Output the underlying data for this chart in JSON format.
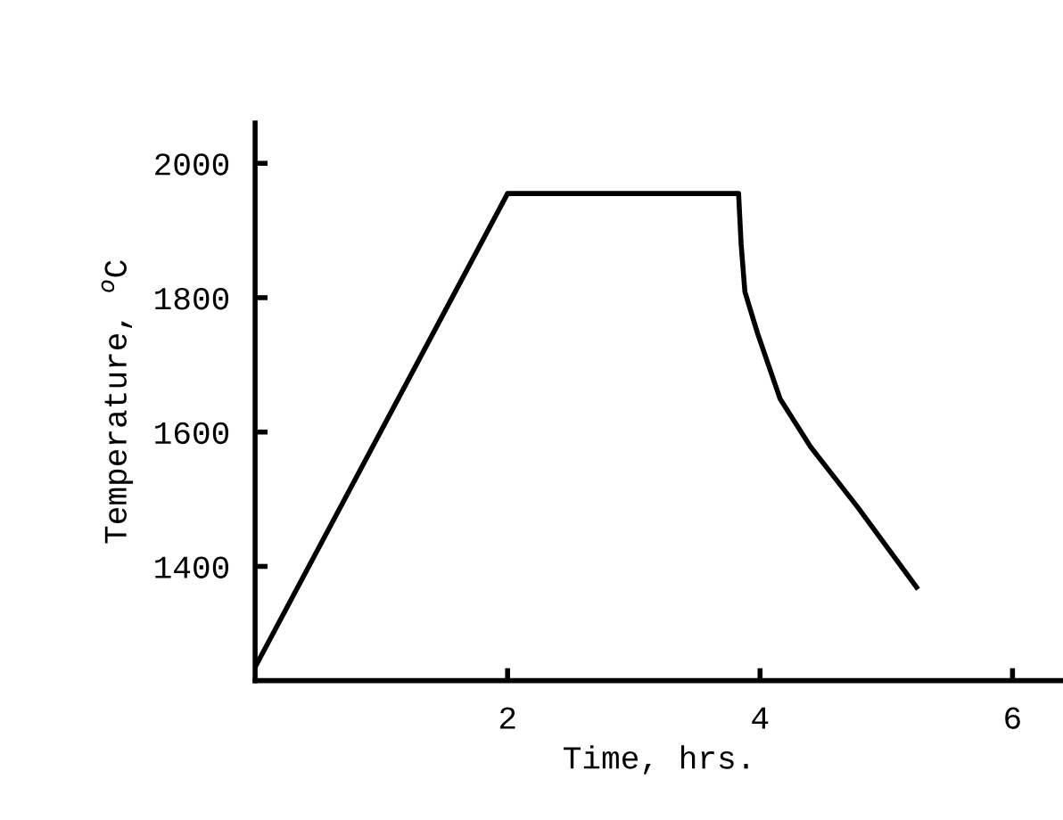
{
  "chart_data": {
    "type": "line",
    "xlabel": "Time, hrs.",
    "ylabel": "Temperature, $^{o}$C",
    "x": [
      0,
      2.0,
      3.83,
      3.85,
      3.88,
      3.98,
      4.16,
      4.4,
      4.77,
      5.24
    ],
    "series": [
      {
        "color": "#000000",
        "values": [
          1250,
          1955,
          1955,
          1880,
          1809,
          1747,
          1649,
          1578,
          1489,
          1369
        ]
      }
    ],
    "xlim": [
      0,
      6.4
    ],
    "ylim": [
      1230,
      2060
    ],
    "xticks": [
      2,
      4,
      6
    ],
    "yticks": [
      1400,
      1600,
      1800,
      2000
    ],
    "grid": false,
    "legend": false,
    "marker": "none",
    "line_style": "solid"
  }
}
